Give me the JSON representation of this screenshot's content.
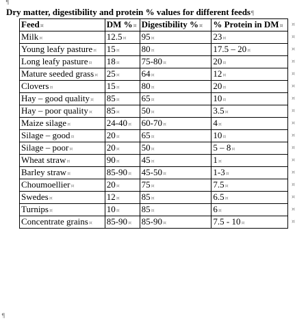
{
  "title": "Dry matter, digestibility and protein % values for different feeds",
  "marks": {
    "paragraph": "¶",
    "cell": "¤"
  },
  "headers": [
    "Feed",
    "DM %",
    "Digestibility %",
    "% Protein in DM"
  ],
  "rows": [
    [
      "Milk",
      "12.5",
      "95",
      "23"
    ],
    [
      "Young leafy pasture",
      "15",
      "80",
      "17.5 – 20"
    ],
    [
      "Long leafy pasture",
      "18",
      "75-80",
      "20"
    ],
    [
      "Mature seeded grass",
      "25",
      "64",
      "12"
    ],
    [
      "Clovers",
      "15",
      "80",
      "20"
    ],
    [
      "Hay – good quality",
      "85",
      "65",
      "10"
    ],
    [
      "Hay – poor quality",
      "85",
      "50",
      "3.5"
    ],
    [
      "Maize silage",
      "24-40",
      "60-70",
      "4"
    ],
    [
      "Silage – good",
      "20",
      "65",
      "10"
    ],
    [
      "Silage – poor",
      "20",
      "50",
      "5 – 8"
    ],
    [
      "Wheat straw",
      "90",
      "45",
      "1"
    ],
    [
      "Barley straw",
      "85-90",
      "45-50",
      "1-3"
    ],
    [
      "Choumoellier",
      "20",
      "75",
      "7.5"
    ],
    [
      "Swedes",
      "12",
      "85",
      "6.5"
    ],
    [
      "Turnips",
      "10",
      "85",
      "6"
    ],
    [
      "Concentrate grains",
      "85-90",
      "85-90",
      "7.5 - 10"
    ]
  ]
}
